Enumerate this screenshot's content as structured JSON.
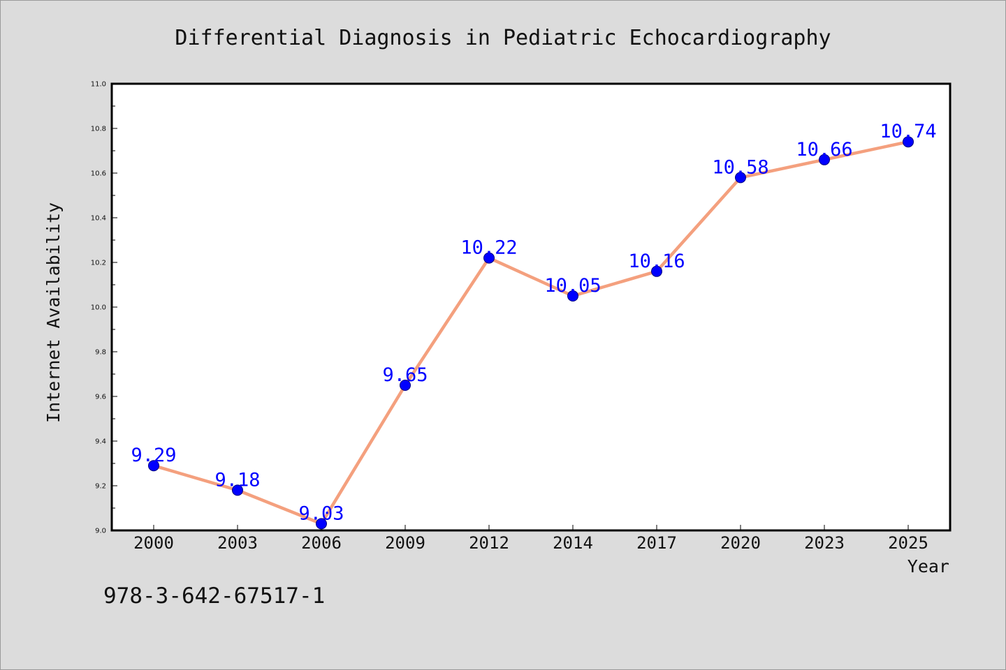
{
  "chart_data": {
    "type": "line",
    "title": "Differential Diagnosis in Pediatric Echocardiography",
    "xlabel": "Year",
    "ylabel": "Internet Availability",
    "categories": [
      "2000",
      "2003",
      "2006",
      "2009",
      "2012",
      "2014",
      "2017",
      "2020",
      "2023",
      "2025"
    ],
    "series": [
      {
        "values": [
          9.29,
          9.18,
          9.03,
          9.65,
          10.22,
          10.05,
          10.16,
          10.58,
          10.66,
          10.74
        ],
        "data_labels": [
          "9.29",
          "9.18",
          "9.03",
          "9.65",
          "10.22",
          "10.05",
          "10.16",
          "10.58",
          "10.66",
          "10.74"
        ]
      }
    ],
    "ylim": [
      9.0,
      11.0
    ],
    "y_ticks": [
      9.0,
      9.2,
      9.4,
      9.6,
      9.8,
      10.0,
      10.2,
      10.4,
      10.6,
      10.8,
      11.0
    ],
    "y_tick_labels": [
      "9.0",
      "9.2",
      "9.4",
      "9.6",
      "9.8",
      "10.0",
      "10.2",
      "10.4",
      "10.6",
      "10.8",
      "11.0"
    ],
    "grid": false,
    "legend": "none",
    "colors": {
      "line": "#f4a07e",
      "marker": "#0000ff",
      "data_label": "#0000ff",
      "plot_background": "#ffffff",
      "figure_background": "#dcdcdc"
    }
  },
  "footer": {
    "code": "978-3-642-67517-1"
  }
}
